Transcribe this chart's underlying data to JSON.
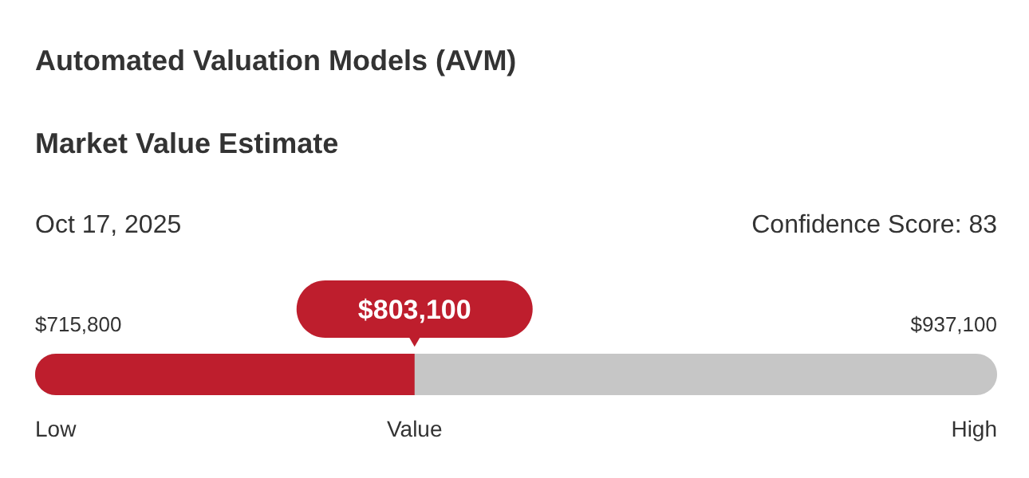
{
  "chart_data": {
    "type": "other",
    "title": "Automated Valuation Models (AVM)",
    "subtitle": "Market Value Estimate",
    "annotations": [
      "Oct 17, 2025",
      "Confidence Score: 83"
    ],
    "categories": [
      "Low",
      "Value",
      "High"
    ],
    "values": [
      715800,
      803100,
      937100
    ],
    "value_labels": [
      "$715,800",
      "$803,100",
      "$937,100"
    ],
    "colors": [
      "#be1e2d",
      "#be1e2d",
      "#c6c6c6"
    ]
  }
}
